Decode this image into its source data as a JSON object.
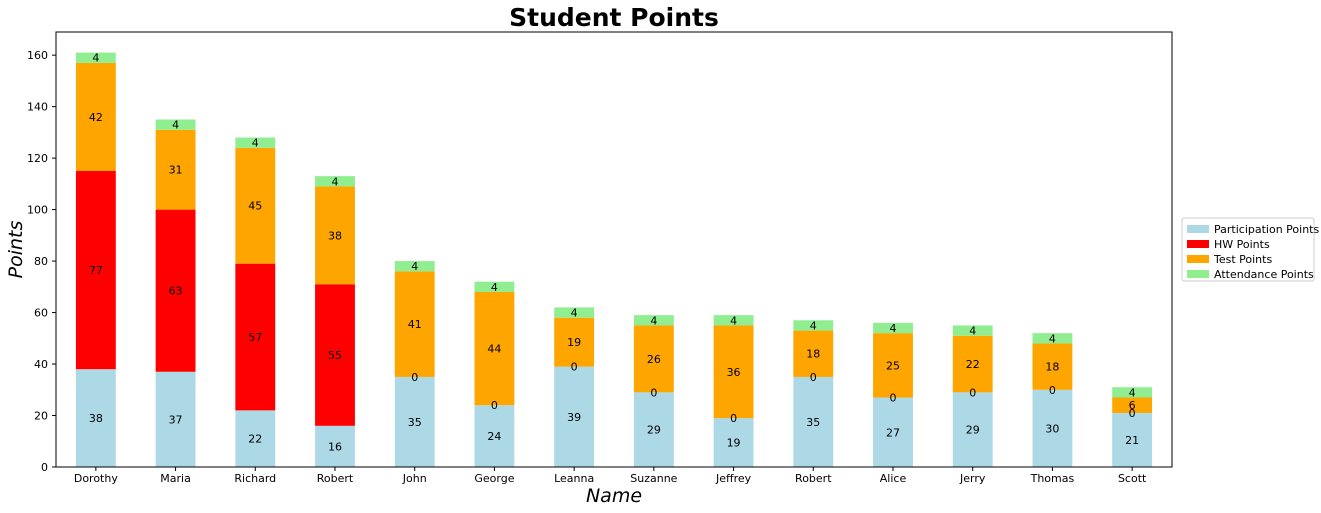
{
  "chart_data": {
    "type": "bar",
    "stacked": true,
    "title": "Student Points",
    "xlabel": "Name",
    "ylabel": "Points",
    "ylim": [
      0,
      169
    ],
    "yticks": [
      0,
      20,
      40,
      60,
      80,
      100,
      120,
      140,
      160
    ],
    "grid": false,
    "legend_position": "right",
    "categories": [
      "Dorothy",
      "Maria",
      "Richard",
      "Robert",
      "John",
      "George",
      "Leanna",
      "Suzanne",
      "Jeffrey",
      "Robert",
      "Alice",
      "Jerry",
      "Thomas",
      "Scott"
    ],
    "series": [
      {
        "name": "Participation Points",
        "color": "#add8e6",
        "values": [
          38,
          37,
          22,
          16,
          35,
          24,
          39,
          29,
          19,
          35,
          27,
          29,
          30,
          21
        ]
      },
      {
        "name": "HW Points",
        "color": "#ff0000",
        "values": [
          77,
          63,
          57,
          55,
          0,
          0,
          0,
          0,
          0,
          0,
          0,
          0,
          0,
          0
        ]
      },
      {
        "name": "Test Points",
        "color": "#ffa500",
        "values": [
          42,
          31,
          45,
          38,
          41,
          44,
          19,
          26,
          36,
          18,
          25,
          22,
          18,
          6
        ]
      },
      {
        "name": "Attendance Points",
        "color": "#90ee90",
        "values": [
          4,
          4,
          4,
          4,
          4,
          4,
          4,
          4,
          4,
          4,
          4,
          4,
          4,
          4
        ]
      }
    ]
  }
}
